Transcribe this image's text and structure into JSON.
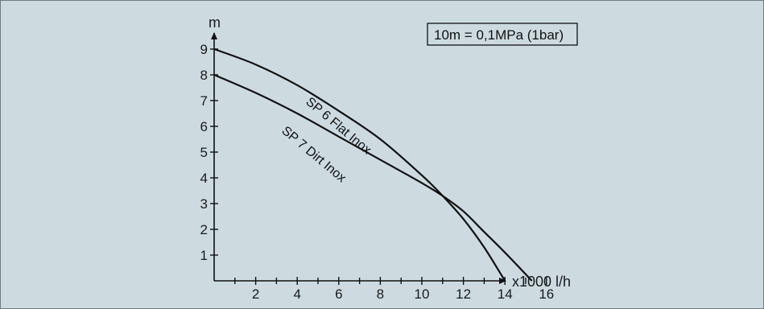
{
  "chart_data": {
    "type": "line",
    "ylabel": "m",
    "xlabel": "x1000 l/h",
    "xlim": [
      0,
      16.3
    ],
    "ylim": [
      0,
      9.5
    ],
    "x_ticks": [
      2,
      4,
      6,
      8,
      10,
      12,
      14,
      16
    ],
    "x_minor_ticks": [
      1,
      3,
      5,
      7,
      9,
      11,
      13,
      15
    ],
    "y_ticks": [
      1,
      2,
      3,
      4,
      5,
      6,
      7,
      8,
      9
    ],
    "annotation": "10m = 0,1MPa (1bar)",
    "series": [
      {
        "name": "SP 6 Flat Inox",
        "color": "#111111",
        "x": [
          0,
          2,
          4,
          6,
          8,
          10,
          11,
          12,
          13,
          14
        ],
        "y": [
          9.0,
          8.4,
          7.6,
          6.6,
          5.5,
          4.1,
          3.3,
          2.4,
          1.3,
          0.0
        ]
      },
      {
        "name": "SP 7 Dirt Inox",
        "color": "#111111",
        "x": [
          0,
          2,
          4,
          6,
          8,
          10,
          11,
          12,
          13,
          14,
          15.3
        ],
        "y": [
          8.0,
          7.3,
          6.5,
          5.6,
          4.7,
          3.8,
          3.3,
          2.7,
          1.9,
          1.1,
          0.0
        ]
      }
    ]
  }
}
